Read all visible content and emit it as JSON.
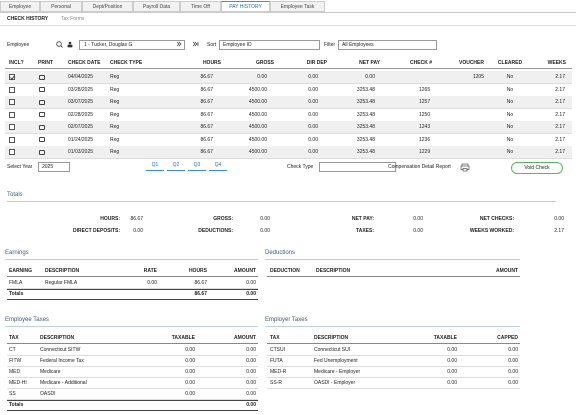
{
  "tabs": [
    "Employee",
    "Personal",
    "Dept/Position",
    "Payroll Data",
    "Time Off",
    "PAY HISTORY",
    "Employee Task"
  ],
  "subtabs": [
    "CHECK HISTORY",
    "Tax Forms"
  ],
  "toolbar": {
    "employee_label": "Employee",
    "employee": "1 - Tucker, Douglas G",
    "sort_label": "Sort",
    "sort": "Employee ID",
    "filter_label": "Filter",
    "filter": "All Employees"
  },
  "checks": {
    "columns": [
      "INCL?",
      "PRINT",
      "CHECK DATE",
      "CHECK TYPE",
      "HOURS",
      "GROSS",
      "DIR DEP",
      "NET PAY",
      "CHECK #",
      "VOUCHER",
      "CLEARED",
      "WEEKS"
    ],
    "included": [
      true,
      false,
      false,
      false,
      false,
      false,
      false
    ],
    "rows": [
      [
        "04/04/2025",
        "Reg",
        "86.67",
        "0.00",
        "0.00",
        "0.00",
        null,
        "1205",
        "No",
        "2.17"
      ],
      [
        "03/28/2025",
        "Reg",
        "86.67",
        "4500.00",
        "0.00",
        "3253.48",
        "1265",
        null,
        "No",
        "2.17"
      ],
      [
        "03/07/2025",
        "Reg",
        "86.67",
        "4500.00",
        "0.00",
        "3253.48",
        "1257",
        null,
        "No",
        "2.17"
      ],
      [
        "02/28/2025",
        "Reg",
        "86.67",
        "4500.00",
        "0.00",
        "3253.48",
        "1250",
        null,
        "No",
        "2.17"
      ],
      [
        "02/07/2025",
        "Reg",
        "86.67",
        "4500.00",
        "0.00",
        "3253.48",
        "1243",
        null,
        "No",
        "2.17"
      ],
      [
        "01/24/2025",
        "Reg",
        "86.67",
        "4500.00",
        "0.00",
        "3253.48",
        "1236",
        null,
        "No",
        "2.17"
      ],
      [
        "01/03/2025",
        "Reg",
        "86.67",
        "4500.00",
        "0.00",
        "3253.48",
        "1229",
        null,
        "No",
        "2.17"
      ]
    ]
  },
  "controls": {
    "year_label": "Select Year",
    "year": "2025",
    "quarters": [
      "Q1",
      "Q2",
      "Q3",
      "Q4"
    ],
    "check_type_label": "Check Type",
    "report": "Compensation Detail Report",
    "void": "Void Check"
  },
  "totals": {
    "title": "Totals",
    "items": [
      [
        "HOURS:",
        "86.67"
      ],
      [
        "GROSS:",
        "0.00"
      ],
      [
        "NET PAY:",
        "0.00"
      ],
      [
        "NET CHECKS:",
        "0.00"
      ],
      [
        "DIRECT DEPOSITS:",
        "0.00"
      ],
      [
        "DEDUCTIONS:",
        "0.00"
      ],
      [
        "TAXES:",
        "0.00"
      ],
      [
        "WEEKS WORKED:",
        "2.17"
      ]
    ]
  },
  "earnings": {
    "title": "Earnings",
    "columns": [
      "EARNING",
      "DESCRIPTION",
      "RATE",
      "HOURS",
      "AMOUNT"
    ],
    "rows": [
      [
        "FMLA",
        "Regular FMLA",
        "0.00",
        "86.67",
        "0.00"
      ]
    ],
    "totals": [
      "Totals",
      null,
      null,
      "86.67",
      "0.00"
    ]
  },
  "deductions": {
    "title": "Deductions",
    "columns": [
      "DEDUCTION",
      "DESCRIPTION",
      "AMOUNT"
    ],
    "rows": []
  },
  "employee_taxes": {
    "title": "Employee Taxes",
    "columns": [
      "TAX",
      "DESCRIPTION",
      "TAXABLE",
      "AMOUNT"
    ],
    "rows": [
      [
        "CT",
        "Connecticut SITW",
        "0.00",
        "0.00"
      ],
      [
        "FITW",
        "Federal Income Tax",
        "0.00",
        "0.00"
      ],
      [
        "MED",
        "Medicare",
        "0.00",
        "0.00"
      ],
      [
        "MED-HI",
        "Medicare - Additional",
        "0.00",
        "0.00"
      ],
      [
        "SS",
        "OASDI",
        "0.00",
        "0.00"
      ]
    ],
    "totals": [
      "Totals",
      null,
      null,
      "0.00"
    ]
  },
  "employer_taxes": {
    "title": "Employer Taxes",
    "columns": [
      "TAX",
      "DESCRIPTION",
      "TAXABLE",
      "CAPPED"
    ],
    "rows": [
      [
        "CTSUI",
        "Connecticut SUI",
        "0.00",
        "0.00"
      ],
      [
        "FUTA",
        "Fed Unemployment",
        "0.00",
        "0.00"
      ],
      [
        "MED-R",
        "Medicare - Employer",
        "0.00",
        "0.00"
      ],
      [
        "SS-R",
        "OASDI - Employer",
        "0.00",
        "0.00"
      ]
    ]
  }
}
